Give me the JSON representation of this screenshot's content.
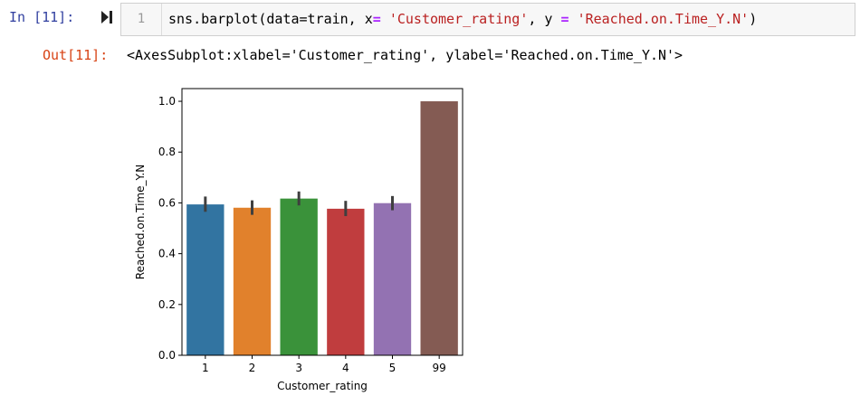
{
  "cell": {
    "in_prompt": "In [11]:",
    "line_number": "1",
    "code": {
      "fn": "sns.barplot(data=train, x",
      "op1": "=",
      "sp1": " ",
      "arg1": "'Customer_rating'",
      "mid": ", y ",
      "op2": "=",
      "sp2": " ",
      "arg2": "'Reached.on.Time_Y.N'",
      "end": ")"
    }
  },
  "output": {
    "out_prompt": "Out[11]:",
    "repr": "<AxesSubplot:xlabel='Customer_rating', ylabel='Reached.on.Time_Y.N'>"
  },
  "chart_data": {
    "type": "bar",
    "categories": [
      "1",
      "2",
      "3",
      "4",
      "5",
      "99"
    ],
    "values": [
      0.594,
      0.581,
      0.617,
      0.577,
      0.599,
      1.0
    ],
    "error_bars": [
      [
        0.565,
        0.625
      ],
      [
        0.553,
        0.61
      ],
      [
        0.59,
        0.645
      ],
      [
        0.548,
        0.608
      ],
      [
        0.571,
        0.627
      ],
      null
    ],
    "colors": [
      "#3274a1",
      "#e1812c",
      "#3a923a",
      "#c03d3e",
      "#9372b2",
      "#845b53"
    ],
    "xlabel": "Customer_rating",
    "ylabel": "Reached.on.Time_Y.N",
    "ylim": [
      0,
      1.05
    ],
    "yticks": [
      0.0,
      0.2,
      0.4,
      0.6,
      0.8,
      1.0
    ],
    "ytick_labels": [
      "0.0",
      "0.2",
      "0.4",
      "0.6",
      "0.8",
      "1.0"
    ],
    "grid": false,
    "legend": "none"
  }
}
